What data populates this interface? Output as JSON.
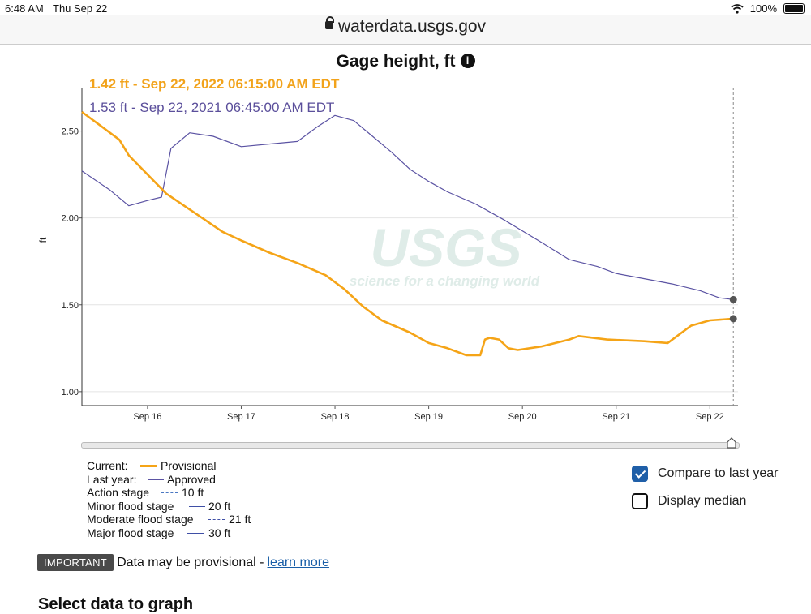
{
  "status_bar": {
    "time": "6:48 AM",
    "date": "Thu Sep 22",
    "battery": "100%"
  },
  "browser": {
    "url": "waterdata.usgs.gov"
  },
  "graph": {
    "title": "Gage height, ft",
    "current_reading": "1.42 ft - Sep 22, 2022 06:15:00 AM EDT",
    "last_year_reading": "1.53 ft - Sep 22, 2021 06:45:00 AM EDT",
    "watermark_main": "USGS",
    "watermark_sub": "science for a changing world"
  },
  "chart_data": {
    "type": "line",
    "ylabel": "ft",
    "ylim": [
      0.92,
      2.75
    ],
    "yticks": [
      "1.00",
      "1.50",
      "2.00",
      "2.50"
    ],
    "xlim": [
      15.3,
      22.3
    ],
    "xticks": [
      "Sep 16",
      "Sep 17",
      "Sep 18",
      "Sep 19",
      "Sep 20",
      "Sep 21",
      "Sep 22"
    ],
    "grid": true,
    "colors": {
      "current": "#f5a417",
      "last_year": "#5b53a3"
    },
    "series": [
      {
        "name": "Provisional",
        "x": [
          15.3,
          15.5,
          15.7,
          15.8,
          16.0,
          16.2,
          16.5,
          16.8,
          17.0,
          17.3,
          17.6,
          17.9,
          18.1,
          18.3,
          18.5,
          18.8,
          19.0,
          19.2,
          19.4,
          19.5,
          19.55,
          19.6,
          19.65,
          19.75,
          19.85,
          19.95,
          20.2,
          20.5,
          20.6,
          20.9,
          21.3,
          21.55,
          21.65,
          21.8,
          22.0,
          22.25
        ],
        "y": [
          2.61,
          2.53,
          2.45,
          2.36,
          2.25,
          2.14,
          2.03,
          1.92,
          1.87,
          1.8,
          1.74,
          1.67,
          1.59,
          1.49,
          1.41,
          1.34,
          1.28,
          1.25,
          1.21,
          1.21,
          1.21,
          1.3,
          1.31,
          1.3,
          1.25,
          1.24,
          1.26,
          1.3,
          1.32,
          1.3,
          1.29,
          1.28,
          1.32,
          1.38,
          1.41,
          1.42
        ]
      },
      {
        "name": "Approved",
        "x": [
          15.3,
          15.6,
          15.8,
          16.0,
          16.15,
          16.25,
          16.45,
          16.7,
          17.0,
          17.4,
          17.6,
          17.8,
          18.0,
          18.2,
          18.4,
          18.6,
          18.8,
          19.0,
          19.2,
          19.5,
          19.8,
          20.2,
          20.5,
          20.8,
          21.0,
          21.3,
          21.6,
          21.9,
          22.1,
          22.25
        ],
        "y": [
          2.27,
          2.16,
          2.07,
          2.1,
          2.12,
          2.4,
          2.49,
          2.47,
          2.41,
          2.43,
          2.44,
          2.52,
          2.59,
          2.56,
          2.47,
          2.38,
          2.28,
          2.21,
          2.15,
          2.08,
          1.99,
          1.86,
          1.76,
          1.72,
          1.68,
          1.65,
          1.62,
          1.58,
          1.54,
          1.53
        ]
      }
    ],
    "end_markers": [
      {
        "x": 22.25,
        "y": 1.42
      },
      {
        "x": 22.25,
        "y": 1.53
      }
    ]
  },
  "legend": {
    "current_label": "Current:",
    "current_series": "Provisional",
    "last_year_label": "Last year:",
    "last_year_series": "Approved",
    "action_label": "Action stage",
    "action_value": "10 ft",
    "minor_label": "Minor flood stage",
    "minor_value": "20 ft",
    "moderate_label": "Moderate flood stage",
    "moderate_value": "21 ft",
    "major_label": "Major flood stage",
    "major_value": "30 ft"
  },
  "options": {
    "compare_label": "Compare to last year",
    "compare_checked": true,
    "median_label": "Display median",
    "median_checked": false
  },
  "notice": {
    "badge": "IMPORTANT",
    "text": "Data may be provisional -",
    "link": "learn more"
  },
  "section": {
    "heading": "Select data to graph"
  }
}
